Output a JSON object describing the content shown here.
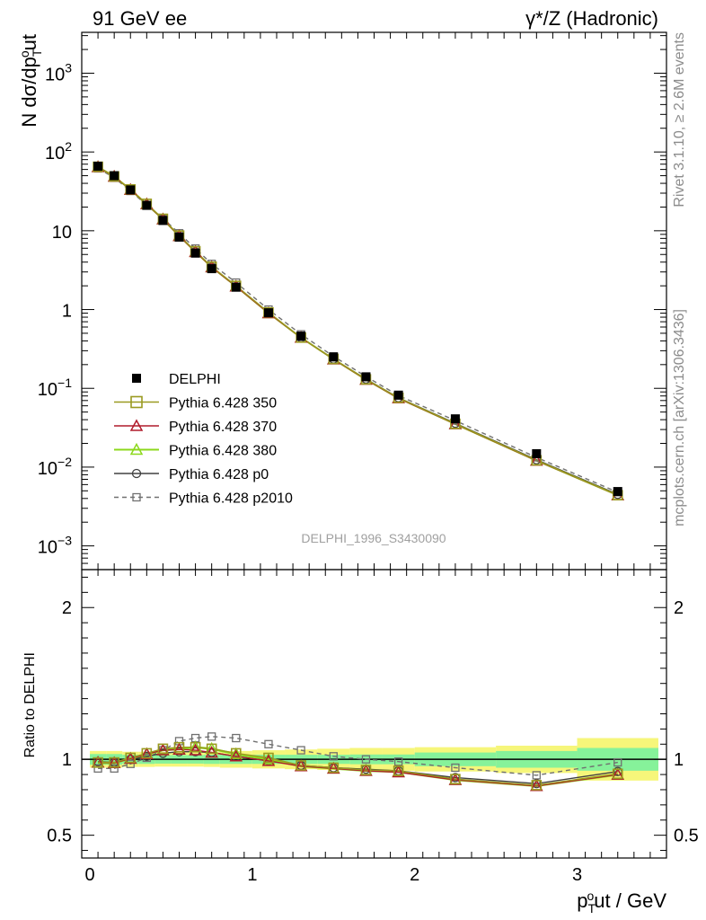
{
  "header": {
    "left": "91 GeV ee",
    "right": "γ*/Z (Hadronic)"
  },
  "side_labels": {
    "rivet": "Rivet 3.1.10, ≥ 2.6M events",
    "mcplots": "mcplots.cern.ch [arXiv:1306.3436]"
  },
  "analysis_id": "DELPHI_1996_S3430090",
  "colors": {
    "DELPHI": "#000000",
    "p350": "#9a9a20",
    "p370": "#b01c2c",
    "p380": "#8cd81c",
    "p0": "#404040",
    "p2010": "#707070",
    "band_inner": "#86f29a",
    "band_outer": "#f6f67a"
  },
  "chart_data": [
    {
      "type": "scatter",
      "panel": "main",
      "ylabel": "N dσ/dp_T^out",
      "xlim": [
        -0.05,
        3.55
      ],
      "ylim": [
        0.0005,
        3300
      ],
      "yscale": "log",
      "yticks": [
        {
          "v": 0.001,
          "base": "10",
          "exp": "−3"
        },
        {
          "v": 0.01,
          "base": "10",
          "exp": "−2"
        },
        {
          "v": 0.1,
          "base": "10",
          "exp": "−1"
        },
        {
          "v": 1,
          "base": "1",
          "exp": ""
        },
        {
          "v": 10,
          "base": "10",
          "exp": ""
        },
        {
          "v": 100,
          "base": "10",
          "exp": "2"
        },
        {
          "v": 1000,
          "base": "10",
          "exp": "3"
        }
      ],
      "x": [
        0.05,
        0.15,
        0.25,
        0.35,
        0.45,
        0.55,
        0.65,
        0.75,
        0.9,
        1.1,
        1.3,
        1.5,
        1.7,
        1.9,
        2.25,
        2.75,
        3.25
      ],
      "series": [
        {
          "key": "DELPHI",
          "name": "DELPHI",
          "marker": "square-filled",
          "line": "none",
          "values": [
            66,
            50,
            33,
            21,
            13.5,
            8.3,
            5.2,
            3.3,
            1.92,
            0.91,
            0.46,
            0.25,
            0.14,
            0.082,
            0.041,
            0.0148,
            0.0049
          ]
        },
        {
          "key": "p350",
          "name": "Pythia 6.428 350",
          "marker": "square-open",
          "line": "solid",
          "values": [
            65,
            49,
            33.5,
            22,
            14.2,
            8.7,
            5.5,
            3.5,
            2.0,
            0.92,
            0.44,
            0.236,
            0.13,
            0.076,
            0.0355,
            0.0122,
            0.0044
          ]
        },
        {
          "key": "p370",
          "name": "Pythia 6.428 370",
          "marker": "triangle-open",
          "line": "solid",
          "values": [
            64.5,
            48.8,
            33.2,
            21.8,
            14.0,
            8.6,
            5.4,
            3.45,
            1.97,
            0.9,
            0.44,
            0.234,
            0.129,
            0.075,
            0.0352,
            0.0121,
            0.0044
          ]
        },
        {
          "key": "p380",
          "name": "Pythia 6.428 380",
          "marker": "triangle-open",
          "line": "solid",
          "values": [
            64.5,
            48.8,
            33.2,
            21.8,
            14.0,
            8.6,
            5.4,
            3.45,
            1.97,
            0.9,
            0.44,
            0.234,
            0.129,
            0.075,
            0.0352,
            0.0121,
            0.0044
          ]
        },
        {
          "key": "p0",
          "name": "Pythia 6.428 p0",
          "marker": "circle-open",
          "line": "solid",
          "values": [
            64.8,
            49,
            33,
            21.4,
            14.0,
            8.6,
            5.4,
            3.45,
            1.96,
            0.9,
            0.44,
            0.235,
            0.131,
            0.076,
            0.036,
            0.0124,
            0.0045
          ]
        },
        {
          "key": "p2010",
          "name": "Pythia 6.428 p2010",
          "marker": "square-small-open",
          "line": "dashed",
          "values": [
            62,
            47,
            32,
            21.2,
            14.3,
            9.3,
            5.95,
            3.8,
            2.2,
            1.0,
            0.485,
            0.255,
            0.141,
            0.081,
            0.039,
            0.0133,
            0.0048
          ]
        }
      ]
    },
    {
      "type": "scatter",
      "panel": "ratio",
      "xlabel": "p_T^out / GeV",
      "ylabel": "Ratio to DELPHI",
      "xlim": [
        -0.05,
        3.55
      ],
      "ylim": [
        0.35,
        2.25
      ],
      "xticks": [
        0,
        1,
        2,
        3
      ],
      "yticks": [
        0.5,
        1,
        2
      ],
      "reference": 1.0,
      "band": {
        "edges": [
          0.0,
          0.1,
          0.2,
          0.3,
          0.4,
          0.5,
          0.6,
          0.7,
          0.8,
          1.0,
          1.2,
          1.4,
          1.6,
          1.8,
          2.0,
          2.5,
          3.0,
          3.5
        ],
        "inner": [
          0.035,
          0.035,
          0.03,
          0.03,
          0.028,
          0.028,
          0.028,
          0.03,
          0.03,
          0.03,
          0.03,
          0.03,
          0.032,
          0.032,
          0.045,
          0.055,
          0.075
        ],
        "outer": [
          0.055,
          0.055,
          0.05,
          0.05,
          0.048,
          0.048,
          0.048,
          0.05,
          0.055,
          0.06,
          0.065,
          0.07,
          0.075,
          0.075,
          0.08,
          0.09,
          0.14
        ]
      },
      "series": [
        {
          "key": "p350",
          "values": [
            0.98,
            0.98,
            1.01,
            1.04,
            1.07,
            1.08,
            1.08,
            1.07,
            1.04,
            1.01,
            0.96,
            0.945,
            0.93,
            0.925,
            0.87,
            0.83,
            0.905
          ]
        },
        {
          "key": "p370",
          "values": [
            0.98,
            0.977,
            1.005,
            1.035,
            1.06,
            1.065,
            1.06,
            1.045,
            1.02,
            0.99,
            0.955,
            0.94,
            0.925,
            0.915,
            0.865,
            0.825,
            0.9
          ]
        },
        {
          "key": "p380",
          "values": [
            0.978,
            0.976,
            1.005,
            1.035,
            1.06,
            1.068,
            1.08,
            1.07,
            1.035,
            1.0,
            0.955,
            0.94,
            0.925,
            0.918,
            0.865,
            0.825,
            0.9
          ]
        },
        {
          "key": "p0",
          "values": [
            0.985,
            0.98,
            1.0,
            1.02,
            1.04,
            1.05,
            1.05,
            1.045,
            1.02,
            0.99,
            0.96,
            0.945,
            0.935,
            0.925,
            0.88,
            0.84,
            0.92
          ]
        },
        {
          "key": "p2010",
          "values": [
            0.94,
            0.94,
            0.97,
            1.01,
            1.06,
            1.12,
            1.14,
            1.15,
            1.14,
            1.1,
            1.06,
            1.02,
            1.0,
            0.985,
            0.945,
            0.895,
            0.98
          ]
        }
      ]
    }
  ]
}
